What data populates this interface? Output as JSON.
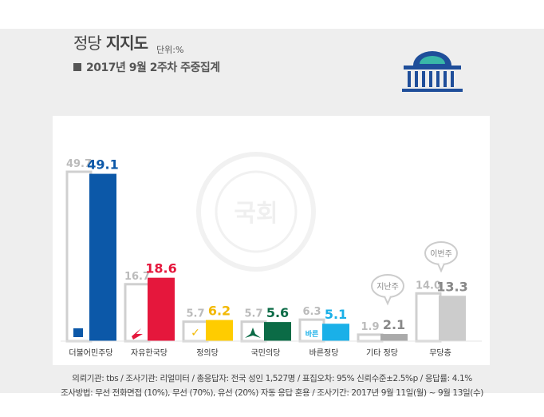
{
  "header": {
    "title_light": "정당",
    "title_bold": "지지도",
    "unit": "단위:%",
    "subtitle": "2017년 9월 2주차 주중집계"
  },
  "watermark": "국회",
  "footer": {
    "line1": "의뢰기관: tbs / 조사기관: 리얼미터 / 총응답자: 전국 성인 1,527명 / 표집오차: 95% 신뢰수준±2.5%p / 응답률: 4.1%",
    "line2": "조사방법: 무선 전화면접 (10%), 무선 (70%), 유선 (20%) 자동 응답 혼용 / 조사기간: 2017년 9월 11일(월) ~ 9월 13일(수)"
  },
  "callouts": {
    "prev_week": "지난주",
    "this_week": "이번주"
  },
  "chart_data": {
    "type": "bar",
    "categories": [
      "더불어민주당",
      "자유한국당",
      "정의당",
      "국민의당",
      "바른정당",
      "기타 정당",
      "무당층"
    ],
    "series": [
      {
        "name": "지난주",
        "values": [
          49.7,
          16.7,
          5.7,
          5.7,
          6.3,
          1.9,
          14.0
        ]
      },
      {
        "name": "이번주",
        "values": [
          49.1,
          18.6,
          6.2,
          5.6,
          5.1,
          2.1,
          13.3
        ]
      }
    ],
    "colors": [
      "#0c58a8",
      "#e5173c",
      "#ffcc00",
      "#0b6b46",
      "#1ab0e8",
      "#aaaaaa",
      "#cccccc"
    ],
    "value_colors": [
      "#0c58a8",
      "#e5173c",
      "#f2b800",
      "#0b6b46",
      "#1ab0e8",
      "#888888",
      "#888888"
    ],
    "party_logos": [
      "",
      "",
      "✓",
      "",
      "바른",
      "",
      ""
    ],
    "ylim": [
      0,
      55
    ]
  }
}
